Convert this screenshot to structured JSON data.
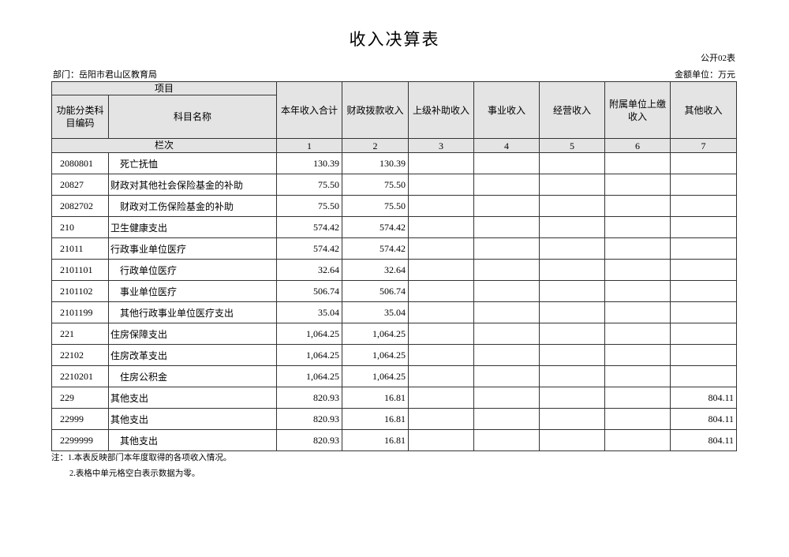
{
  "header": {
    "title": "收入决算表",
    "form_no": "公开02表",
    "department": "部门：岳阳市君山区教育局",
    "unit": "金额单位：万元"
  },
  "table": {
    "group_header": "项目",
    "code_header": "功能分类科目编码",
    "name_header": "科目名称",
    "columns": [
      "本年收入合计",
      "财政拨款收入",
      "上级补助收入",
      "事业收入",
      "经营收入",
      "附属单位上缴收入",
      "其他收入"
    ],
    "index_label": "栏次",
    "column_numbers": [
      1,
      2,
      3,
      4,
      5,
      6,
      7
    ],
    "rows": [
      [
        "2080801",
        "死亡抚恤",
        "130.39",
        "130.39",
        null,
        null,
        null,
        null,
        null
      ],
      [
        "20827",
        "财政对其他社会保险基金的补助",
        "75.50",
        "75.50",
        null,
        null,
        null,
        null,
        null
      ],
      [
        "2082702",
        "财政对工伤保险基金的补助",
        "75.50",
        "75.50",
        null,
        null,
        null,
        null,
        null
      ],
      [
        "210",
        "卫生健康支出",
        "574.42",
        "574.42",
        null,
        null,
        null,
        null,
        null
      ],
      [
        "21011",
        "行政事业单位医疗",
        "574.42",
        "574.42",
        null,
        null,
        null,
        null,
        null
      ],
      [
        "2101101",
        "行政单位医疗",
        "32.64",
        "32.64",
        null,
        null,
        null,
        null,
        null
      ],
      [
        "2101102",
        "事业单位医疗",
        "506.74",
        "506.74",
        null,
        null,
        null,
        null,
        null
      ],
      [
        "2101199",
        "其他行政事业单位医疗支出",
        "35.04",
        "35.04",
        null,
        null,
        null,
        null,
        null
      ],
      [
        "221",
        "住房保障支出",
        "1,064.25",
        "1,064.25",
        null,
        null,
        null,
        null,
        null
      ],
      [
        "22102",
        "住房改革支出",
        "1,064.25",
        "1,064.25",
        null,
        null,
        null,
        null,
        null
      ],
      [
        "2210201",
        "住房公积金",
        "1,064.25",
        "1,064.25",
        null,
        null,
        null,
        null,
        null
      ],
      [
        "229",
        "其他支出",
        "820.93",
        "16.81",
        null,
        null,
        null,
        null,
        "804.11"
      ],
      [
        "22999",
        "其他支出",
        "820.93",
        "16.81",
        null,
        null,
        null,
        null,
        "804.11"
      ],
      [
        "2299999",
        "其他支出",
        "820.93",
        "16.81",
        null,
        null,
        null,
        null,
        "804.11"
      ]
    ]
  },
  "notes": [
    "注：1.本表反映部门本年度取得的各项收入情况。",
    "2.表格中单元格空白表示数据为零。"
  ]
}
